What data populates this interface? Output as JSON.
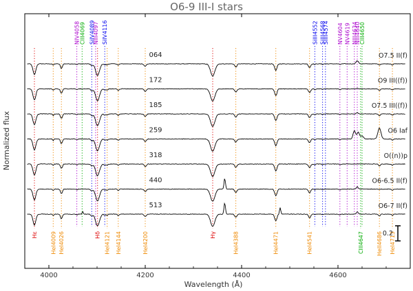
{
  "chart_data": {
    "type": "line",
    "title": "O6-9 III-I stars",
    "xlabel": "Wavelength (Å)",
    "ylabel": "Normalized flux",
    "xlim": [
      3950,
      4750
    ],
    "x_ticks": [
      4000,
      4200,
      4400,
      4600
    ],
    "scale_bar_label": "0.2",
    "colors": {
      "He": "#dd0000",
      "HeI": "#ee8800",
      "N": "#aa00cc",
      "C": "#00aa00",
      "Si": "#0000ee",
      "frame": "#000000",
      "spectrum": "#000000"
    },
    "top_lines": [
      {
        "label": "NIV4058",
        "wavelength": 4058,
        "kind": "N"
      },
      {
        "label": "CIII4069",
        "wavelength": 4069,
        "kind": "C"
      },
      {
        "label": "SiIV4089",
        "wavelength": 4089,
        "kind": "Si"
      },
      {
        "label": "NIII4097",
        "wavelength": 4097,
        "kind": "N"
      },
      {
        "label": "SiIV4116",
        "wavelength": 4116,
        "kind": "Si"
      },
      {
        "label": "SiIII4552",
        "wavelength": 4552,
        "kind": "Si"
      },
      {
        "label": "SiIII4568",
        "wavelength": 4568,
        "kind": "Si"
      },
      {
        "label": "SiIII4574",
        "wavelength": 4574,
        "kind": "Si"
      },
      {
        "label": "NV4604",
        "wavelength": 4604,
        "kind": "N"
      },
      {
        "label": "NV4619",
        "wavelength": 4619,
        "kind": "N"
      },
      {
        "label": "NIII4634",
        "wavelength": 4634,
        "kind": "N"
      },
      {
        "label": "NIII4640",
        "wavelength": 4640,
        "kind": "N"
      },
      {
        "label": "CIII4650",
        "wavelength": 4650,
        "kind": "C"
      }
    ],
    "bottom_lines": [
      {
        "label": "Hε",
        "wavelength": 3970,
        "kind": "He"
      },
      {
        "label": "HeI4009",
        "wavelength": 4009,
        "kind": "HeI"
      },
      {
        "label": "HeI4026",
        "wavelength": 4026,
        "kind": "HeI"
      },
      {
        "label": "Hδ",
        "wavelength": 4101,
        "kind": "He"
      },
      {
        "label": "HeI4121",
        "wavelength": 4121,
        "kind": "HeI"
      },
      {
        "label": "HeI4144",
        "wavelength": 4144,
        "kind": "HeI"
      },
      {
        "label": "HeI4200",
        "wavelength": 4200,
        "kind": "HeI"
      },
      {
        "label": "Hγ",
        "wavelength": 4340,
        "kind": "He"
      },
      {
        "label": "HeI4388",
        "wavelength": 4388,
        "kind": "HeI"
      },
      {
        "label": "HeI4471",
        "wavelength": 4471,
        "kind": "HeI"
      },
      {
        "label": "HeI4541",
        "wavelength": 4541,
        "kind": "HeI"
      },
      {
        "label": "CIII4647",
        "wavelength": 4647,
        "kind": "C"
      },
      {
        "label": "HeII4686",
        "wavelength": 4686,
        "kind": "HeI"
      },
      {
        "label": "HeI4713",
        "wavelength": 4713,
        "kind": "HeI"
      }
    ],
    "series": [
      {
        "name": "064",
        "class": "O7.5 II(f)",
        "level": 0
      },
      {
        "name": "172",
        "class": "O9 III((f))",
        "level": 1
      },
      {
        "name": "185",
        "class": "O7.5 III((f))",
        "level": 2
      },
      {
        "name": "259",
        "class": "O6 Iaf",
        "level": 3
      },
      {
        "name": "318",
        "class": "O((n))p",
        "level": 4
      },
      {
        "name": "440",
        "class": "O6-6.5 II(f)",
        "level": 5
      },
      {
        "name": "513",
        "class": "O6-7 II(f)",
        "level": 6
      }
    ]
  }
}
